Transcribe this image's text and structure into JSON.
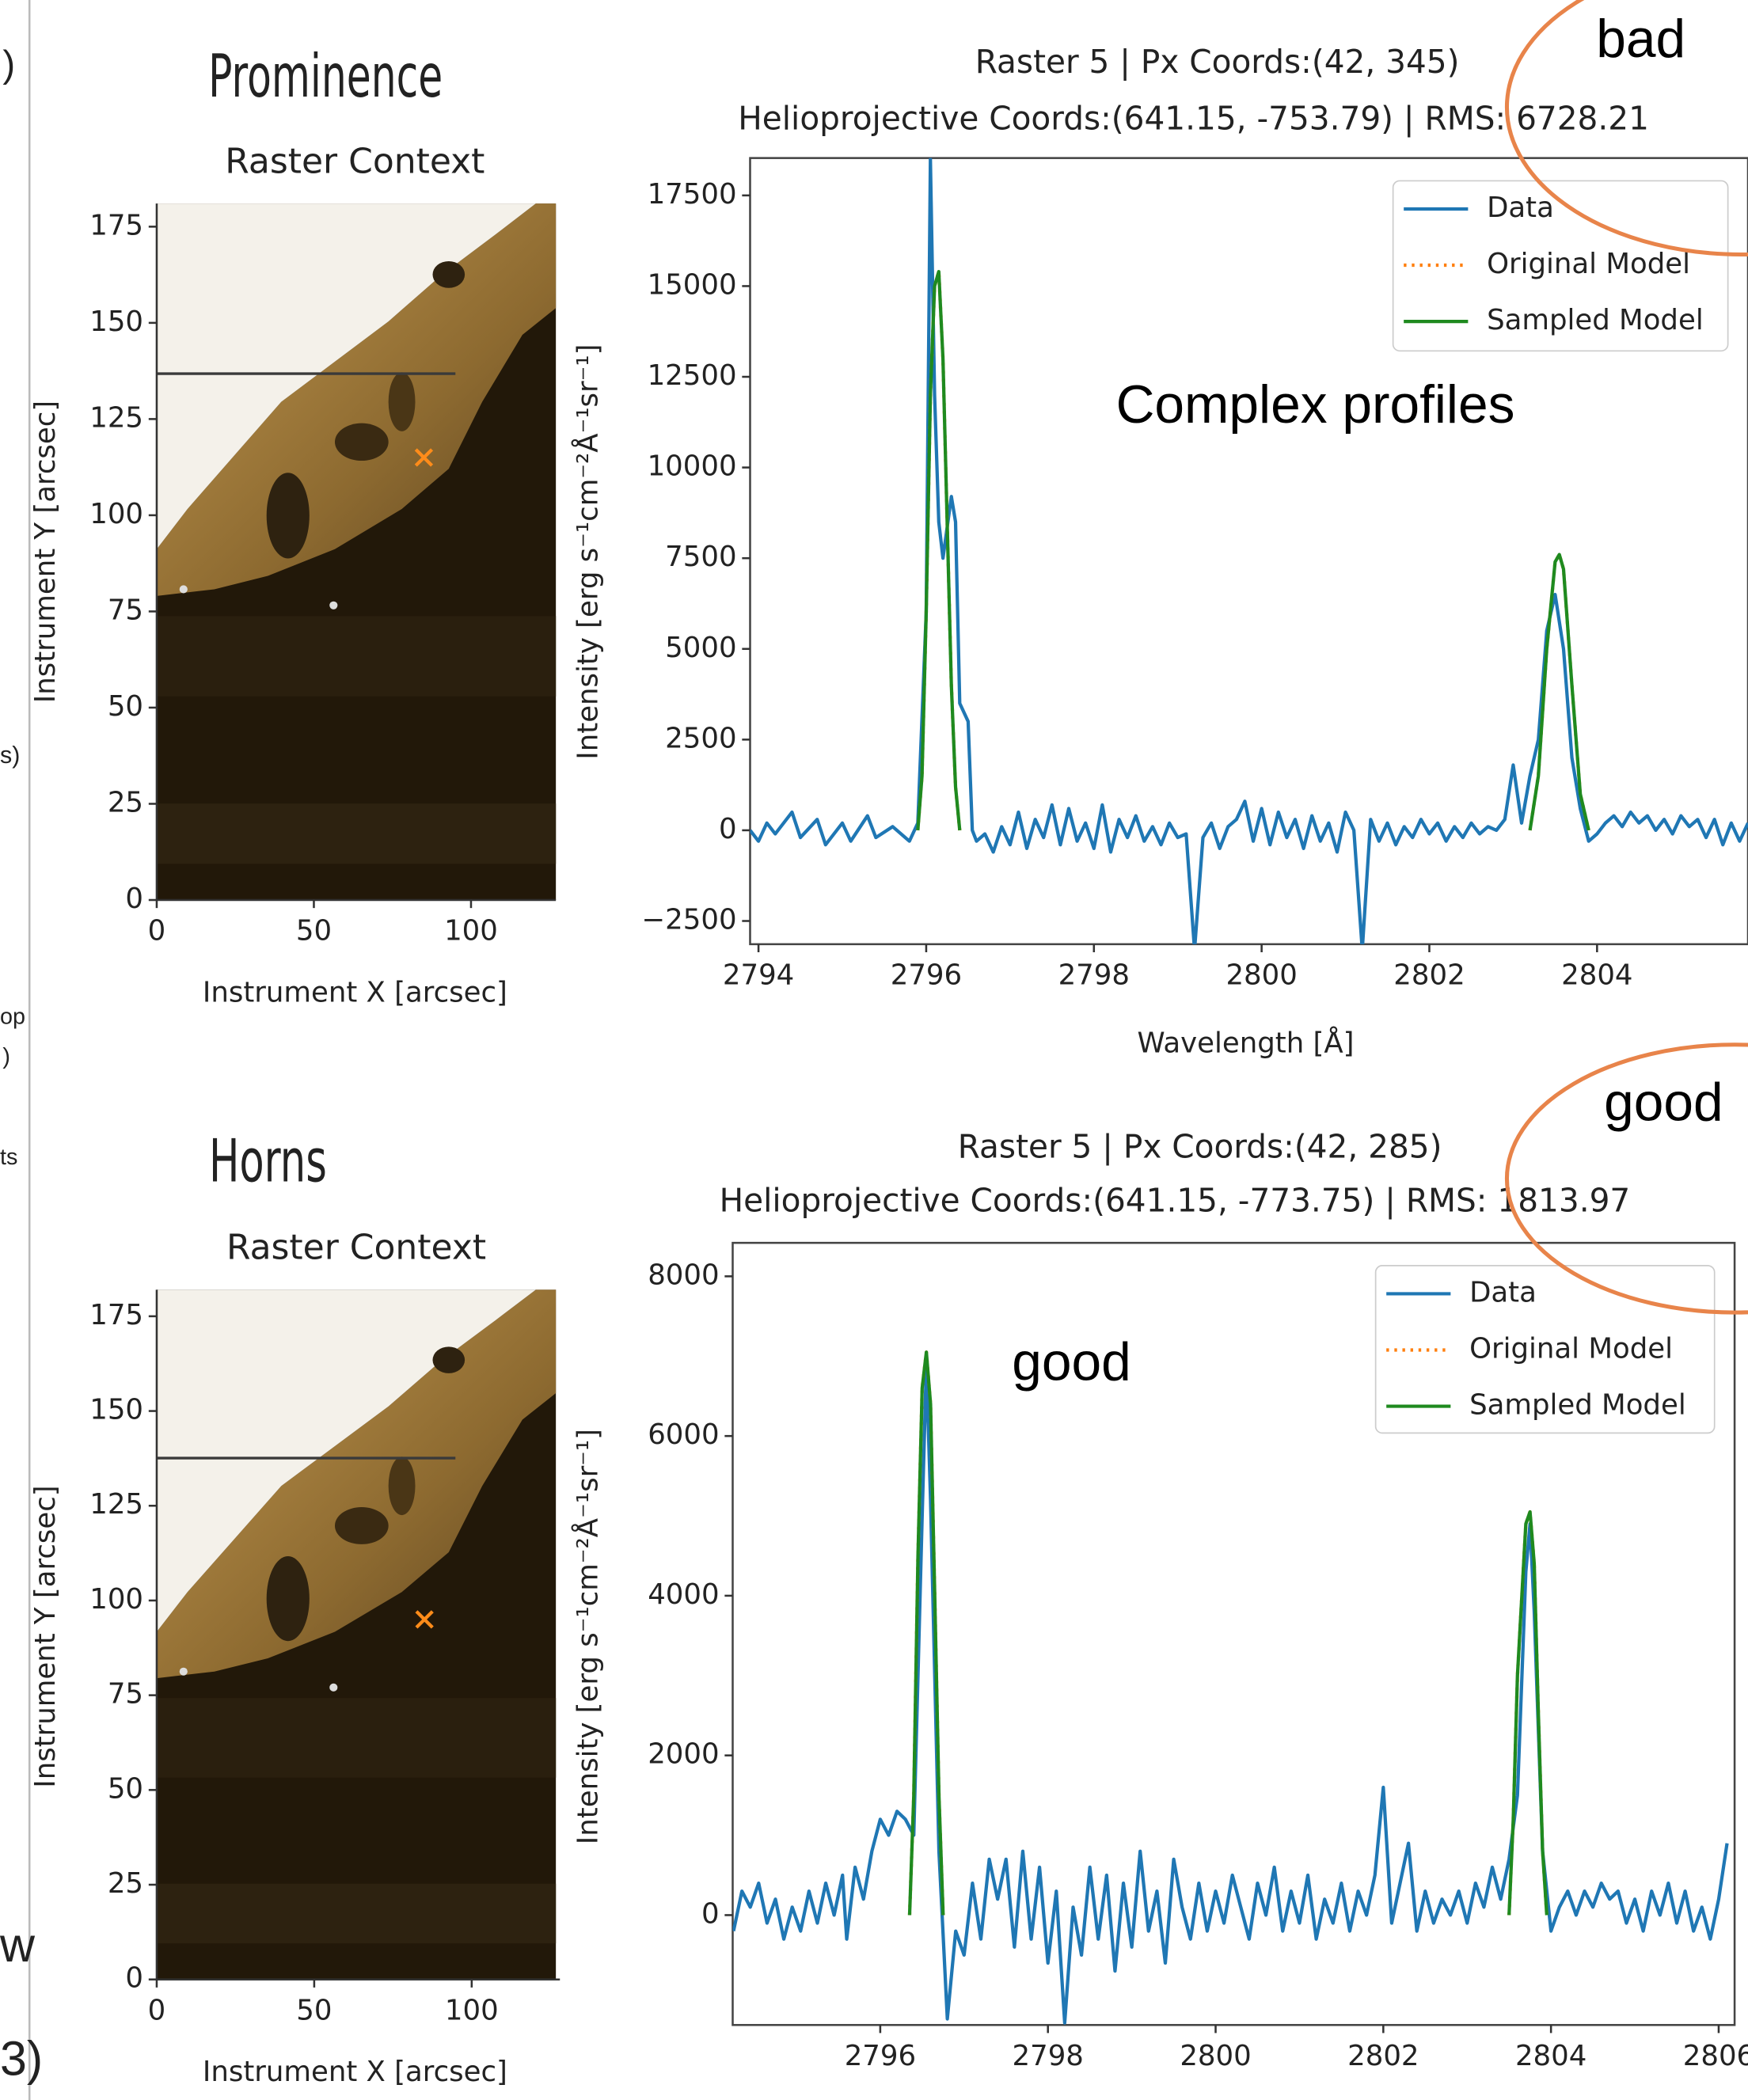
{
  "margin_fragments": [
    ")",
    "s)",
    "op",
    ")",
    "ts",
    "w",
    "3)"
  ],
  "chart_data": [
    {
      "type": "image",
      "title": "Prominence",
      "subtitle": "Raster Context",
      "xlabel": "Instrument X [arcsec]",
      "ylabel": "Instrument Y [arcsec]",
      "xlim": [
        0,
        127
      ],
      "ylim": [
        0,
        181
      ],
      "xticks": [
        0,
        50,
        100
      ],
      "yticks": [
        0,
        25,
        50,
        75,
        100,
        125,
        150,
        175
      ],
      "marker": {
        "x": 85,
        "y": 115,
        "color": "#ff8c1a"
      }
    },
    {
      "type": "line",
      "title": "Raster 5 | Px Coords:(42, 345)",
      "subtitle": "Helioprojective Coords:(641.15, -753.79) | RMS: 6728.21",
      "xlabel": "Wavelength [Å]",
      "ylabel": "Intensity [erg s⁻¹cm⁻²Å⁻¹sr⁻¹]",
      "xlim": [
        2793.9,
        2805.8
      ],
      "ylim": [
        -3140,
        18530
      ],
      "xticks": [
        2794,
        2796,
        2798,
        2800,
        2802,
        2804
      ],
      "yticks": [
        {
          "value": -2500,
          "label": "−2500"
        },
        0,
        2500,
        5000,
        7500,
        10000,
        12500,
        15000,
        17500
      ],
      "legend": "upper right",
      "annotations": [
        "bad",
        "Complex   profiles"
      ],
      "series": [
        {
          "name": "Data",
          "color": "#1f77b4",
          "style": "solid",
          "x": [
            2793.9,
            2794.0,
            2794.1,
            2794.2,
            2794.4,
            2794.5,
            2794.7,
            2794.8,
            2795.0,
            2795.1,
            2795.3,
            2795.4,
            2795.6,
            2795.8,
            2795.9,
            2796.0,
            2796.05,
            2796.1,
            2796.15,
            2796.2,
            2796.3,
            2796.35,
            2796.4,
            2796.5,
            2796.55,
            2796.6,
            2796.7,
            2796.8,
            2796.9,
            2797.0,
            2797.1,
            2797.2,
            2797.3,
            2797.4,
            2797.5,
            2797.6,
            2797.7,
            2797.8,
            2797.9,
            2798.0,
            2798.1,
            2798.2,
            2798.3,
            2798.4,
            2798.5,
            2798.6,
            2798.7,
            2798.8,
            2798.9,
            2799.0,
            2799.1,
            2799.2,
            2799.3,
            2799.4,
            2799.5,
            2799.6,
            2799.7,
            2799.8,
            2799.9,
            2800.0,
            2800.1,
            2800.2,
            2800.3,
            2800.4,
            2800.5,
            2800.6,
            2800.7,
            2800.8,
            2800.9,
            2801.0,
            2801.1,
            2801.2,
            2801.3,
            2801.4,
            2801.5,
            2801.6,
            2801.7,
            2801.8,
            2801.9,
            2802.0,
            2802.1,
            2802.2,
            2802.3,
            2802.4,
            2802.5,
            2802.6,
            2802.7,
            2802.8,
            2802.9,
            2803.0,
            2803.1,
            2803.2,
            2803.3,
            2803.4,
            2803.5,
            2803.6,
            2803.7,
            2803.8,
            2803.9,
            2804.0,
            2804.1,
            2804.2,
            2804.3,
            2804.4,
            2804.5,
            2804.6,
            2804.7,
            2804.8,
            2804.9,
            2805.0,
            2805.1,
            2805.2,
            2805.3,
            2805.4,
            2805.5,
            2805.6,
            2805.7,
            2805.8
          ],
          "values": [
            0,
            -300,
            200,
            -100,
            500,
            -200,
            300,
            -400,
            200,
            -300,
            400,
            -200,
            100,
            -300,
            200,
            6000,
            18500,
            12000,
            8500,
            7500,
            9200,
            8500,
            3500,
            3000,
            0,
            -300,
            -100,
            -600,
            100,
            -400,
            500,
            -500,
            300,
            -200,
            700,
            -400,
            600,
            -300,
            200,
            -500,
            700,
            -600,
            300,
            -200,
            400,
            -300,
            100,
            -400,
            200,
            -200,
            -100,
            -3300,
            -200,
            200,
            -500,
            100,
            300,
            800,
            -300,
            600,
            -400,
            500,
            -200,
            300,
            -500,
            400,
            -300,
            200,
            -600,
            500,
            0,
            -3300,
            300,
            -300,
            200,
            -400,
            100,
            -200,
            300,
            -100,
            200,
            -300,
            100,
            -200,
            200,
            -100,
            100,
            0,
            300,
            1800,
            200,
            1500,
            2500,
            5500,
            6500,
            5000,
            2000,
            600,
            -300,
            -100,
            200,
            400,
            100,
            500,
            200,
            400,
            0,
            300,
            -100,
            400,
            100,
            300,
            -200,
            300,
            -400,
            200,
            -300,
            200
          ]
        },
        {
          "name": "Original Model",
          "color": "#ff7f0e",
          "style": "dotted",
          "x": [
            2795.9,
            2795.95,
            2796.0,
            2796.05,
            2796.1,
            2796.15,
            2796.2,
            2796.25,
            2796.3,
            2796.35,
            2796.4,
            2800.0,
            2803.2,
            2803.3,
            2803.4,
            2803.5,
            2803.55,
            2803.6,
            2803.7,
            2803.8,
            2803.9
          ],
          "values": [
            0,
            1500,
            6000,
            12000,
            15000,
            15400,
            13000,
            8500,
            4000,
            1200,
            0,
            null,
            0,
            1500,
            5000,
            7400,
            7600,
            7200,
            4000,
            1000,
            0
          ]
        },
        {
          "name": "Sampled Model",
          "color": "#1f8a1f",
          "style": "solid",
          "x": [
            2795.9,
            2795.95,
            2796.0,
            2796.05,
            2796.1,
            2796.15,
            2796.2,
            2796.25,
            2796.3,
            2796.35,
            2796.4,
            2800.0,
            2803.2,
            2803.3,
            2803.4,
            2803.5,
            2803.55,
            2803.6,
            2803.7,
            2803.8,
            2803.9
          ],
          "values": [
            0,
            1500,
            6000,
            12000,
            15000,
            15400,
            13000,
            8500,
            4000,
            1200,
            0,
            null,
            0,
            1500,
            5000,
            7400,
            7600,
            7200,
            4000,
            1000,
            0
          ]
        }
      ]
    },
    {
      "type": "image",
      "title": "Horns",
      "subtitle": "Raster Context",
      "xlabel": "Instrument X [arcsec]",
      "ylabel": "Instrument Y [arcsec]",
      "xlim": [
        0,
        128
      ],
      "ylim": [
        0,
        182
      ],
      "xticks": [
        0,
        50,
        100
      ],
      "yticks": [
        0,
        25,
        50,
        75,
        100,
        125,
        150,
        175
      ],
      "marker": {
        "x": 85,
        "y": 95,
        "color": "#ff8c1a"
      }
    },
    {
      "type": "line",
      "title": "Raster 5 | Px Coords:(42, 285)",
      "subtitle": "Helioprojective Coords:(641.15, -773.75) | RMS: 1813.97",
      "ylabel": "Intensity [erg s⁻¹cm⁻²Å⁻¹sr⁻¹]",
      "xlim": [
        2794.24,
        2806.19
      ],
      "ylim": [
        -1376,
        8419
      ],
      "xticks": [
        2796,
        2798,
        2800,
        2802,
        2804,
        2806
      ],
      "yticks": [
        0,
        2000,
        4000,
        6000,
        8000
      ],
      "legend": "upper right",
      "annotations": [
        "good",
        "good"
      ],
      "series": [
        {
          "name": "Data",
          "color": "#1f77b4",
          "style": "solid",
          "x": [
            2794.25,
            2794.35,
            2794.45,
            2794.55,
            2794.65,
            2794.75,
            2794.85,
            2794.95,
            2795.05,
            2795.15,
            2795.25,
            2795.35,
            2795.45,
            2795.55,
            2795.6,
            2795.7,
            2795.8,
            2795.9,
            2796.0,
            2796.1,
            2796.2,
            2796.3,
            2796.4,
            2796.5,
            2796.55,
            2796.6,
            2796.7,
            2796.8,
            2796.9,
            2797.0,
            2797.1,
            2797.2,
            2797.3,
            2797.4,
            2797.5,
            2797.6,
            2797.7,
            2797.8,
            2797.9,
            2798.0,
            2798.1,
            2798.2,
            2798.3,
            2798.4,
            2798.5,
            2798.6,
            2798.7,
            2798.8,
            2798.9,
            2799.0,
            2799.1,
            2799.2,
            2799.3,
            2799.4,
            2799.5,
            2799.6,
            2799.7,
            2799.8,
            2799.9,
            2800.0,
            2800.1,
            2800.2,
            2800.3,
            2800.4,
            2800.5,
            2800.6,
            2800.7,
            2800.8,
            2800.9,
            2801.0,
            2801.1,
            2801.2,
            2801.3,
            2801.4,
            2801.5,
            2801.6,
            2801.7,
            2801.8,
            2801.9,
            2802.0,
            2802.1,
            2802.2,
            2802.3,
            2802.4,
            2802.5,
            2802.6,
            2802.7,
            2802.8,
            2802.9,
            2803.0,
            2803.1,
            2803.2,
            2803.3,
            2803.4,
            2803.5,
            2803.6,
            2803.7,
            2803.75,
            2803.8,
            2803.9,
            2804.0,
            2804.1,
            2804.2,
            2804.3,
            2804.4,
            2804.5,
            2804.6,
            2804.7,
            2804.8,
            2804.9,
            2805.0,
            2805.1,
            2805.2,
            2805.3,
            2805.4,
            2805.5,
            2805.6,
            2805.7,
            2805.8,
            2805.9,
            2806.0,
            2806.1
          ],
          "values": [
            -200,
            300,
            100,
            400,
            -100,
            200,
            -300,
            100,
            -200,
            300,
            -100,
            400,
            0,
            500,
            -300,
            600,
            200,
            800,
            1200,
            1000,
            1300,
            1200,
            1000,
            5000,
            6900,
            5200,
            800,
            -1300,
            -200,
            -500,
            400,
            -300,
            700,
            200,
            700,
            -400,
            800,
            -300,
            600,
            -600,
            300,
            -1350,
            100,
            -500,
            600,
            -300,
            500,
            -700,
            400,
            -400,
            800,
            -200,
            300,
            -600,
            700,
            100,
            -300,
            400,
            -200,
            300,
            -100,
            500,
            100,
            -300,
            400,
            0,
            600,
            -200,
            300,
            -100,
            500,
            -300,
            200,
            -100,
            400,
            -200,
            300,
            0,
            500,
            1600,
            -100,
            400,
            900,
            -200,
            300,
            -100,
            200,
            0,
            300,
            -100,
            400,
            100,
            600,
            200,
            700,
            1500,
            4300,
            4900,
            3800,
            800,
            -200,
            100,
            300,
            0,
            300,
            100,
            400,
            200,
            300,
            -100,
            200,
            -200,
            300,
            0,
            400,
            -100,
            300,
            -200,
            100,
            -300,
            200,
            900
          ]
        },
        {
          "name": "Original Model",
          "color": "#ff7f0e",
          "style": "dotted",
          "x": [
            2796.35,
            2796.4,
            2796.45,
            2796.5,
            2796.55,
            2796.6,
            2796.65,
            2796.7,
            2796.75,
            2800.0,
            2803.5,
            2803.55,
            2803.6,
            2803.7,
            2803.75,
            2803.8,
            2803.85,
            2803.9,
            2803.95
          ],
          "values": [
            0,
            1500,
            4500,
            6600,
            7050,
            6400,
            4000,
            1500,
            0,
            null,
            0,
            1200,
            3000,
            4900,
            5050,
            4400,
            2500,
            800,
            0
          ]
        },
        {
          "name": "Sampled Model",
          "color": "#1f8a1f",
          "style": "solid",
          "x": [
            2796.35,
            2796.4,
            2796.45,
            2796.5,
            2796.55,
            2796.6,
            2796.65,
            2796.7,
            2796.75,
            2800.0,
            2803.5,
            2803.55,
            2803.6,
            2803.7,
            2803.75,
            2803.8,
            2803.85,
            2803.9,
            2803.95
          ],
          "values": [
            0,
            1500,
            4500,
            6600,
            7050,
            6400,
            4000,
            1500,
            0,
            null,
            0,
            1200,
            3000,
            4900,
            5050,
            4400,
            2500,
            800,
            0
          ]
        }
      ]
    }
  ]
}
